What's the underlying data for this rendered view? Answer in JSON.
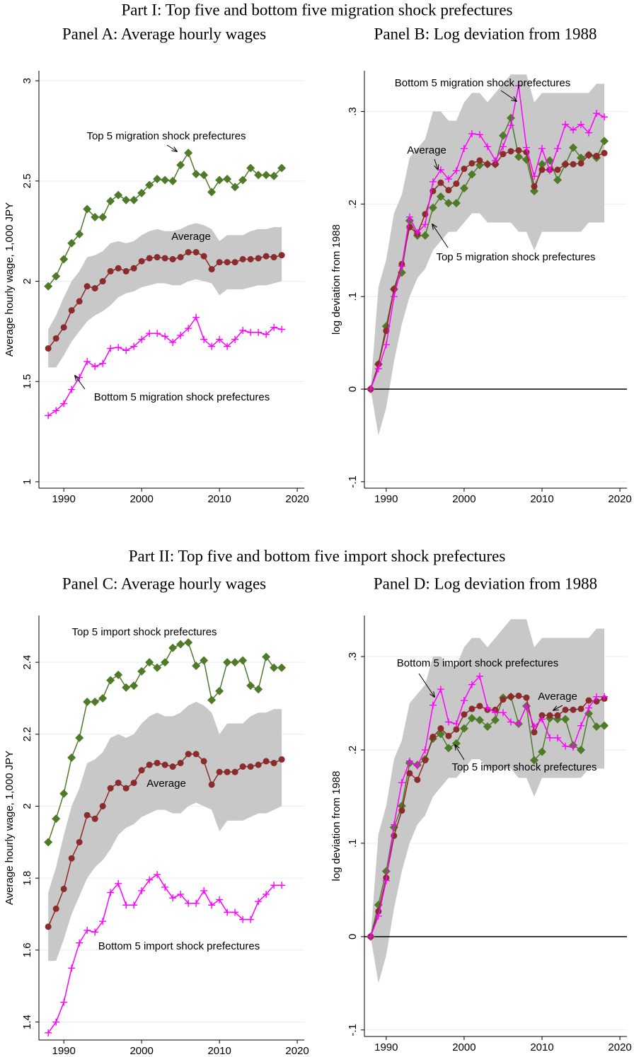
{
  "part_titles": [
    "Part I: Top five and bottom five migration shock prefectures",
    "Part II: Top five and bottom five import shock prefectures"
  ],
  "chart_data": [
    {
      "type": "line",
      "title": "Panel A: Average hourly wages",
      "y_label": "Average hourly wage, 1,000 JPY",
      "x": [
        1988,
        1989,
        1990,
        1991,
        1992,
        1993,
        1994,
        1995,
        1996,
        1997,
        1998,
        1999,
        2000,
        2001,
        2002,
        2003,
        2004,
        2005,
        2006,
        2007,
        2008,
        2009,
        2010,
        2011,
        2012,
        2013,
        2014,
        2015,
        2016,
        2017,
        2018
      ],
      "xlim": [
        1986.8,
        2020.9
      ],
      "xticks": [
        1990,
        2000,
        2010,
        2020
      ],
      "ylim": [
        0.968,
        3.05
      ],
      "yticks": [
        1,
        1.5,
        2,
        2.5,
        3
      ],
      "grid": true,
      "band": {
        "color": "#c8c8c8",
        "lower": [
          1.57,
          1.57,
          1.63,
          1.7,
          1.75,
          1.8,
          1.83,
          1.85,
          1.88,
          1.92,
          1.94,
          1.95,
          1.97,
          1.98,
          1.99,
          1.99,
          1.98,
          1.98,
          2.0,
          2.01,
          2.0,
          1.99,
          1.93,
          1.96,
          1.96,
          1.96,
          1.97,
          1.98,
          1.98,
          1.99,
          2.0
        ],
        "upper": [
          1.76,
          1.83,
          1.92,
          2.0,
          2.05,
          2.12,
          2.13,
          2.15,
          2.19,
          2.2,
          2.19,
          2.2,
          2.23,
          2.25,
          2.26,
          2.25,
          2.25,
          2.26,
          2.28,
          2.29,
          2.28,
          2.26,
          2.2,
          2.23,
          2.23,
          2.23,
          2.25,
          2.26,
          2.26,
          2.27,
          2.27
        ]
      },
      "series": [
        {
          "name": "Top 5 migration shock prefectures",
          "color": "#4f7a28",
          "marker": "diamond",
          "values": [
            1.975,
            2.025,
            2.11,
            2.19,
            2.235,
            2.36,
            2.32,
            2.32,
            2.4,
            2.43,
            2.405,
            2.405,
            2.44,
            2.48,
            2.51,
            2.505,
            2.5,
            2.58,
            2.64,
            2.535,
            2.53,
            2.445,
            2.505,
            2.51,
            2.47,
            2.505,
            2.565,
            2.53,
            2.53,
            2.525,
            2.565
          ]
        },
        {
          "name": "Average",
          "color": "#8b2b2b",
          "marker": "circle",
          "values": [
            1.665,
            1.715,
            1.77,
            1.855,
            1.9,
            1.975,
            1.965,
            2.0,
            2.05,
            2.065,
            2.05,
            2.065,
            2.1,
            2.115,
            2.12,
            2.115,
            2.11,
            2.12,
            2.145,
            2.145,
            2.125,
            2.06,
            2.095,
            2.095,
            2.095,
            2.11,
            2.11,
            2.115,
            2.125,
            2.12,
            2.13
          ]
        },
        {
          "name": "Bottom 5 migration shock prefectures",
          "color": "#ff00ff",
          "marker": "plus",
          "values": [
            1.33,
            1.355,
            1.39,
            1.46,
            1.52,
            1.6,
            1.575,
            1.59,
            1.665,
            1.67,
            1.655,
            1.675,
            1.71,
            1.74,
            1.74,
            1.725,
            1.695,
            1.73,
            1.765,
            1.82,
            1.71,
            1.675,
            1.71,
            1.675,
            1.71,
            1.755,
            1.745,
            1.745,
            1.735,
            1.77,
            1.76
          ]
        }
      ]
    },
    {
      "type": "line",
      "title": "Panel B: Log deviation from 1988",
      "y_label": "log deviation from 1988",
      "x": [
        1988,
        1989,
        1990,
        1991,
        1992,
        1993,
        1994,
        1995,
        1996,
        1997,
        1998,
        1999,
        2000,
        2001,
        2002,
        2003,
        2004,
        2005,
        2006,
        2007,
        2008,
        2009,
        2010,
        2011,
        2012,
        2013,
        2014,
        2015,
        2016,
        2017,
        2018
      ],
      "xlim": [
        1987.2,
        2020.9
      ],
      "xticks": [
        1990,
        2000,
        2010,
        2020
      ],
      "ylim": [
        -0.107,
        0.344
      ],
      "yticks": [
        {
          "value": -0.1,
          "label": "-.1"
        },
        0,
        {
          "value": 0.1,
          "label": ".1"
        },
        {
          "value": 0.2,
          "label": ".2"
        },
        {
          "value": 0.3,
          "label": ".3"
        }
      ],
      "grid": true,
      "reference_line": 0,
      "band": {
        "color": "#c8c8c8",
        "lower": [
          0,
          -0.05,
          -0.02,
          0.03,
          0.07,
          0.1,
          0.12,
          0.13,
          0.15,
          0.16,
          0.17,
          0.17,
          0.18,
          0.19,
          0.19,
          0.18,
          0.18,
          0.18,
          0.18,
          0.17,
          0.17,
          0.15,
          0.17,
          0.17,
          0.17,
          0.17,
          0.17,
          0.17,
          0.18,
          0.18,
          0.18
        ],
        "upper": [
          0,
          0.11,
          0.14,
          0.19,
          0.21,
          0.25,
          0.26,
          0.27,
          0.3,
          0.3,
          0.29,
          0.29,
          0.31,
          0.32,
          0.32,
          0.31,
          0.32,
          0.33,
          0.34,
          0.34,
          0.34,
          0.31,
          0.32,
          0.32,
          0.32,
          0.32,
          0.32,
          0.32,
          0.32,
          0.33,
          0.33
        ]
      },
      "series": [
        {
          "name": "Top 5 migration shock prefectures",
          "color": "#4f7a28",
          "marker": "diamond",
          "values": [
            0,
            0.027,
            0.068,
            0.108,
            0.126,
            0.182,
            0.166,
            0.166,
            0.196,
            0.208,
            0.201,
            0.201,
            0.217,
            0.232,
            0.242,
            0.243,
            0.243,
            0.274,
            0.293,
            0.251,
            0.248,
            0.214,
            0.243,
            0.247,
            0.226,
            0.243,
            0.261,
            0.25,
            0.253,
            0.25,
            0.268
          ]
        },
        {
          "name": "Average",
          "color": "#8b2b2b",
          "marker": "circle",
          "values": [
            0,
            0.027,
            0.063,
            0.108,
            0.135,
            0.175,
            0.168,
            0.189,
            0.214,
            0.223,
            0.215,
            0.222,
            0.238,
            0.244,
            0.247,
            0.243,
            0.243,
            0.254,
            0.257,
            0.258,
            0.256,
            0.219,
            0.237,
            0.237,
            0.237,
            0.243,
            0.243,
            0.244,
            0.253,
            0.252,
            0.255
          ]
        },
        {
          "name": "Bottom 5 migration shock prefectures",
          "color": "#ff00ff",
          "marker": "plus",
          "values": [
            0,
            0.022,
            0.048,
            0.1,
            0.133,
            0.186,
            0.169,
            0.178,
            0.224,
            0.237,
            0.227,
            0.236,
            0.26,
            0.276,
            0.275,
            0.262,
            0.247,
            0.262,
            0.285,
            0.328,
            0.261,
            0.23,
            0.26,
            0.236,
            0.26,
            0.286,
            0.28,
            0.286,
            0.277,
            0.298,
            0.294
          ]
        }
      ]
    },
    {
      "type": "line",
      "title": "Panel C: Average hourly wages",
      "y_label": "Average hourly wage, 1,000 JPY",
      "x": [
        1988,
        1989,
        1990,
        1991,
        1992,
        1993,
        1994,
        1995,
        1996,
        1997,
        1998,
        1999,
        2000,
        2001,
        2002,
        2003,
        2004,
        2005,
        2006,
        2007,
        2008,
        2009,
        2010,
        2011,
        2012,
        2013,
        2014,
        2015,
        2016,
        2017,
        2018
      ],
      "xlim": [
        1986.8,
        2020.9
      ],
      "xticks": [
        1990,
        2000,
        2010,
        2020
      ],
      "ylim": [
        1.35,
        2.53
      ],
      "yticks": [
        1.4,
        1.6,
        1.8,
        2,
        2.2,
        2.4
      ],
      "grid": true,
      "band": {
        "color": "#c8c8c8",
        "lower": [
          1.57,
          1.57,
          1.63,
          1.7,
          1.75,
          1.8,
          1.83,
          1.85,
          1.88,
          1.92,
          1.94,
          1.95,
          1.97,
          1.98,
          1.99,
          1.99,
          1.98,
          1.98,
          2.0,
          2.01,
          2.0,
          1.99,
          1.93,
          1.96,
          1.96,
          1.96,
          1.97,
          1.98,
          1.98,
          1.99,
          2.0
        ],
        "upper": [
          1.76,
          1.83,
          1.92,
          2.0,
          2.05,
          2.12,
          2.13,
          2.15,
          2.19,
          2.2,
          2.19,
          2.2,
          2.23,
          2.25,
          2.26,
          2.25,
          2.25,
          2.26,
          2.28,
          2.29,
          2.28,
          2.26,
          2.2,
          2.23,
          2.23,
          2.23,
          2.25,
          2.26,
          2.26,
          2.27,
          2.27
        ]
      },
      "series": [
        {
          "name": "Top 5 import shock prefectures",
          "color": "#4f7a28",
          "marker": "diamond",
          "values": [
            1.9,
            1.965,
            2.035,
            2.135,
            2.19,
            2.29,
            2.29,
            2.3,
            2.35,
            2.365,
            2.33,
            2.335,
            2.375,
            2.4,
            2.385,
            2.4,
            2.44,
            2.45,
            2.455,
            2.39,
            2.405,
            2.295,
            2.32,
            2.4,
            2.4,
            2.405,
            2.335,
            2.325,
            2.415,
            2.385,
            2.385
          ]
        },
        {
          "name": "Average",
          "color": "#8b2b2b",
          "marker": "circle",
          "values": [
            1.665,
            1.715,
            1.77,
            1.855,
            1.9,
            1.975,
            1.965,
            2.0,
            2.05,
            2.065,
            2.05,
            2.065,
            2.1,
            2.115,
            2.12,
            2.115,
            2.11,
            2.12,
            2.145,
            2.145,
            2.125,
            2.06,
            2.095,
            2.095,
            2.095,
            2.11,
            2.11,
            2.115,
            2.125,
            2.12,
            2.13
          ]
        },
        {
          "name": "Bottom 5 import shock prefectures",
          "color": "#ff00ff",
          "marker": "plus",
          "values": [
            1.37,
            1.4,
            1.455,
            1.55,
            1.62,
            1.655,
            1.65,
            1.68,
            1.76,
            1.785,
            1.725,
            1.725,
            1.765,
            1.795,
            1.81,
            1.775,
            1.745,
            1.755,
            1.73,
            1.73,
            1.765,
            1.725,
            1.74,
            1.705,
            1.705,
            1.685,
            1.685,
            1.735,
            1.755,
            1.78,
            1.78
          ]
        }
      ]
    },
    {
      "type": "line",
      "title": "Panel D: Log deviation from 1988",
      "y_label": "log deviation from 1988",
      "x": [
        1988,
        1989,
        1990,
        1991,
        1992,
        1993,
        1994,
        1995,
        1996,
        1997,
        1998,
        1999,
        2000,
        2001,
        2002,
        2003,
        2004,
        2005,
        2006,
        2007,
        2008,
        2009,
        2010,
        2011,
        2012,
        2013,
        2014,
        2015,
        2016,
        2017,
        2018
      ],
      "xlim": [
        1987.2,
        2020.9
      ],
      "xticks": [
        1990,
        2000,
        2010,
        2020
      ],
      "ylim": [
        -0.107,
        0.344
      ],
      "yticks": [
        {
          "value": -0.1,
          "label": "-.1"
        },
        0,
        {
          "value": 0.1,
          "label": ".1"
        },
        {
          "value": 0.2,
          "label": ".2"
        },
        {
          "value": 0.3,
          "label": ".3"
        }
      ],
      "grid": true,
      "reference_line": 0,
      "band": {
        "color": "#c8c8c8",
        "lower": [
          0,
          -0.05,
          -0.02,
          0.03,
          0.07,
          0.1,
          0.12,
          0.13,
          0.15,
          0.16,
          0.17,
          0.17,
          0.18,
          0.19,
          0.19,
          0.18,
          0.18,
          0.18,
          0.18,
          0.17,
          0.17,
          0.15,
          0.17,
          0.17,
          0.17,
          0.17,
          0.17,
          0.17,
          0.18,
          0.18,
          0.18
        ],
        "upper": [
          0,
          0.11,
          0.14,
          0.19,
          0.21,
          0.25,
          0.26,
          0.27,
          0.3,
          0.3,
          0.29,
          0.29,
          0.31,
          0.32,
          0.32,
          0.31,
          0.32,
          0.33,
          0.34,
          0.34,
          0.34,
          0.31,
          0.32,
          0.32,
          0.32,
          0.32,
          0.32,
          0.32,
          0.32,
          0.33,
          0.33
        ]
      },
      "series": [
        {
          "name": "Top 5 import shock prefectures",
          "color": "#4f7a28",
          "marker": "diamond",
          "values": [
            0,
            0.034,
            0.07,
            0.117,
            0.14,
            0.186,
            0.184,
            0.19,
            0.212,
            0.217,
            0.202,
            0.207,
            0.223,
            0.234,
            0.232,
            0.225,
            0.232,
            0.256,
            0.257,
            0.228,
            0.247,
            0.189,
            0.198,
            0.234,
            0.233,
            0.233,
            0.205,
            0.2,
            0.239,
            0.225,
            0.226
          ]
        },
        {
          "name": "Average",
          "color": "#8b2b2b",
          "marker": "circle",
          "values": [
            0,
            0.027,
            0.063,
            0.108,
            0.135,
            0.175,
            0.168,
            0.189,
            0.214,
            0.223,
            0.215,
            0.222,
            0.238,
            0.244,
            0.247,
            0.243,
            0.243,
            0.254,
            0.257,
            0.258,
            0.256,
            0.219,
            0.237,
            0.237,
            0.237,
            0.243,
            0.243,
            0.244,
            0.253,
            0.252,
            0.255
          ]
        },
        {
          "name": "Bottom 5 import shock prefectures",
          "color": "#ff00ff",
          "marker": "plus",
          "values": [
            0,
            0.022,
            0.06,
            0.12,
            0.165,
            0.188,
            0.183,
            0.2,
            0.248,
            0.265,
            0.23,
            0.228,
            0.253,
            0.27,
            0.279,
            0.245,
            0.24,
            0.24,
            0.23,
            0.228,
            0.247,
            0.225,
            0.233,
            0.213,
            0.213,
            0.204,
            0.203,
            0.226,
            0.245,
            0.257,
            0.257
          ]
        }
      ]
    }
  ]
}
